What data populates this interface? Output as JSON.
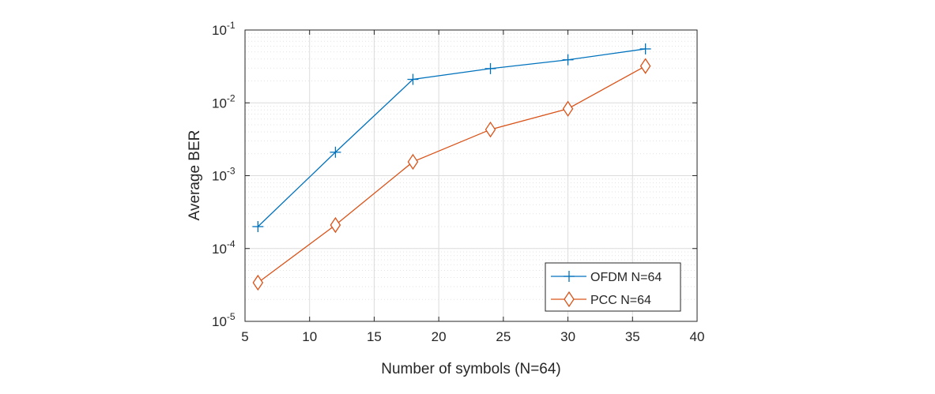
{
  "chart_data": {
    "type": "line",
    "title": "",
    "xlabel": "Number of symbols (N=64)",
    "ylabel": "Average BER",
    "xlim": [
      5,
      40
    ],
    "ylim": [
      1e-05,
      0.1
    ],
    "yscale": "log",
    "grid": true,
    "xticks": [
      5,
      10,
      15,
      20,
      25,
      30,
      35,
      40
    ],
    "yticks": [
      {
        "base": "10",
        "exp": "-5",
        "value": 1e-05
      },
      {
        "base": "10",
        "exp": "-4",
        "value": 0.0001
      },
      {
        "base": "10",
        "exp": "-3",
        "value": 0.001
      },
      {
        "base": "10",
        "exp": "-2",
        "value": 0.01
      },
      {
        "base": "10",
        "exp": "-1",
        "value": 0.1
      }
    ],
    "legend_position": "bottom-right",
    "x": [
      6,
      12,
      18,
      24,
      30,
      36
    ],
    "series": [
      {
        "name": "OFDM N=64",
        "color": "#0072BD",
        "marker": "plus",
        "values": [
          0.0002,
          0.0021,
          0.021,
          0.0295,
          0.039,
          0.055
        ]
      },
      {
        "name": "PCC N=64",
        "color": "#D95319",
        "marker": "diamond",
        "values": [
          3.4e-05,
          0.00021,
          0.00155,
          0.0043,
          0.0083,
          0.032
        ]
      }
    ]
  }
}
